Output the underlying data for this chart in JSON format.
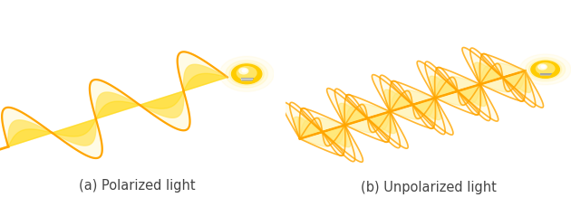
{
  "background_color": "#ffffff",
  "label_a": "(a) Polarized light",
  "label_b": "(b) Unpolarized light",
  "label_fontsize": 10.5,
  "wave_color": "#FFA500",
  "wave_fill_outer": "#FFFBE6",
  "wave_fill_inner": "#FFD700",
  "arrow_color": "#FFA500",
  "label_color": "#444444",
  "fig_width": 6.3,
  "fig_height": 2.3,
  "dpi": 100
}
